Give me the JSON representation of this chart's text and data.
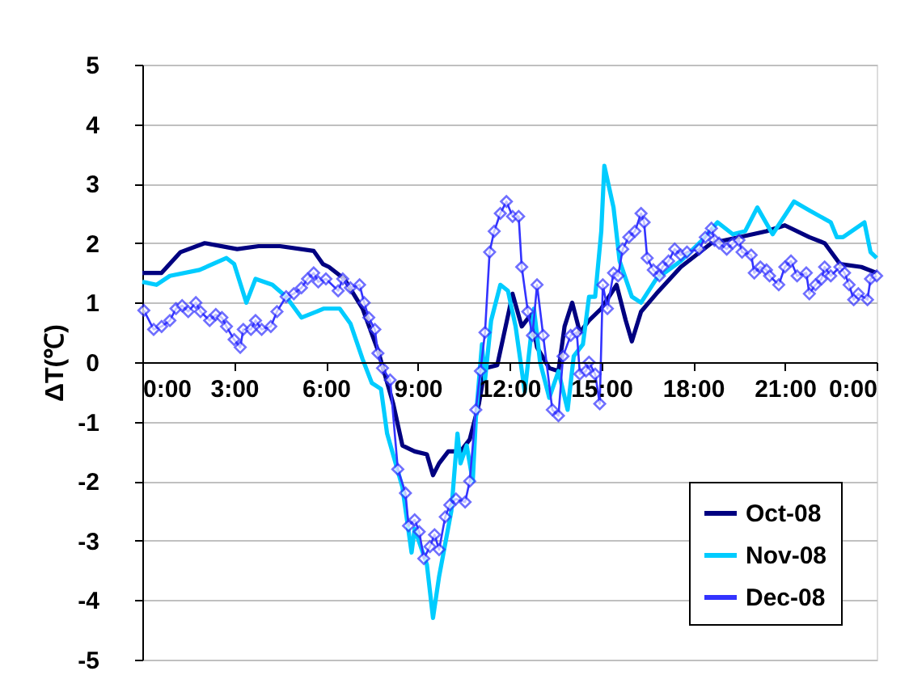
{
  "chart_data": {
    "type": "line",
    "ylabel": "ΔT(℃)",
    "xlim": [
      0,
      24
    ],
    "xticks": [
      {
        "value": 0,
        "label": "0:00"
      },
      {
        "value": 3,
        "label": "3:00"
      },
      {
        "value": 6,
        "label": "6:00"
      },
      {
        "value": 9,
        "label": "9:00"
      },
      {
        "value": 12,
        "label": "12:00"
      },
      {
        "value": 15,
        "label": "15:00"
      },
      {
        "value": 18,
        "label": "18:00"
      },
      {
        "value": 21,
        "label": "21:00"
      },
      {
        "value": 24,
        "label": "0:00"
      }
    ],
    "ylim": [
      -5,
      5
    ],
    "yticks": [
      -5,
      -4,
      -3,
      -2,
      -1,
      0,
      1,
      2,
      3,
      4,
      5
    ],
    "grid": "y",
    "legend": "bottom right",
    "series": [
      {
        "name": "Oct-08",
        "color": "#000080",
        "marker": "none",
        "x": [
          0,
          0.63,
          1.25,
          2.04,
          3.1,
          3.8,
          4.5,
          5.6,
          5.9,
          6.1,
          6.6,
          7.2,
          7.7,
          8.2,
          8.5,
          8.9,
          9.3,
          9.5,
          9.7,
          10.0,
          10.4,
          10.7,
          11.0,
          11.2,
          11.6,
          12.0,
          12.1,
          12.4,
          12.7,
          12.9,
          13.3,
          13.6,
          13.8,
          14.05,
          14.3,
          14.6,
          15.0,
          15.5,
          15.8,
          16.0,
          16.3,
          16.8,
          17.6,
          18.6,
          19.5,
          20.4,
          21.0,
          21.8,
          22.3,
          22.8,
          23.5,
          24.0
        ],
        "values": [
          1.5,
          1.5,
          1.85,
          2.0,
          1.9,
          1.95,
          1.95,
          1.87,
          1.65,
          1.6,
          1.4,
          0.9,
          0.2,
          -0.7,
          -1.4,
          -1.5,
          -1.55,
          -1.9,
          -1.7,
          -1.5,
          -1.5,
          -1.3,
          -0.7,
          -0.1,
          -0.05,
          0.9,
          1.15,
          0.6,
          0.8,
          0.25,
          -0.1,
          -0.15,
          0.6,
          1.0,
          0.5,
          0.7,
          0.9,
          1.3,
          0.7,
          0.35,
          0.85,
          1.15,
          1.6,
          2.0,
          2.1,
          2.2,
          2.3,
          2.1,
          2.0,
          1.65,
          1.6,
          1.5
        ]
      },
      {
        "name": "Nov-08",
        "color": "#00ccff",
        "marker": "none",
        "x": [
          0,
          0.46,
          0.9,
          1.87,
          2.75,
          3.0,
          3.4,
          3.7,
          4.25,
          4.7,
          5.2,
          5.7,
          5.92,
          6.45,
          6.8,
          7.2,
          7.5,
          7.8,
          8.0,
          8.5,
          8.8,
          8.9,
          9.3,
          9.5,
          9.7,
          10.1,
          10.3,
          10.4,
          10.6,
          10.8,
          10.9,
          11.1,
          11.2,
          11.4,
          11.7,
          11.95,
          12.2,
          12.5,
          12.8,
          13.0,
          13.3,
          13.6,
          13.9,
          14.1,
          14.4,
          14.6,
          14.8,
          15.0,
          15.1,
          15.4,
          15.6,
          16.0,
          16.3,
          16.8,
          17.6,
          18.3,
          18.8,
          19.3,
          19.7,
          20.1,
          20.6,
          21.3,
          21.8,
          22.5,
          22.7,
          22.9,
          23.6,
          23.8,
          24.0
        ],
        "values": [
          1.35,
          1.3,
          1.45,
          1.55,
          1.75,
          1.65,
          1.0,
          1.4,
          1.3,
          1.1,
          0.75,
          0.85,
          0.9,
          0.9,
          0.65,
          0.05,
          -0.35,
          -0.45,
          -1.2,
          -2.1,
          -3.2,
          -2.8,
          -3.4,
          -4.3,
          -3.6,
          -2.5,
          -1.2,
          -1.7,
          -1.4,
          -2.0,
          -0.95,
          0.3,
          -0.3,
          0.7,
          1.3,
          1.2,
          0.6,
          -0.5,
          0.9,
          0.0,
          -0.6,
          -0.15,
          -0.8,
          0.1,
          0.3,
          1.1,
          1.1,
          2.2,
          3.3,
          2.6,
          1.7,
          1.1,
          1.0,
          1.4,
          1.7,
          2.05,
          2.35,
          2.15,
          2.2,
          2.6,
          2.15,
          2.7,
          2.55,
          2.35,
          2.1,
          2.1,
          2.35,
          1.85,
          1.75
        ]
      },
      {
        "name": "Dec-08",
        "color": "#3333ff",
        "marker": "diamond",
        "x": [
          0.05,
          0.37,
          0.63,
          0.9,
          1.1,
          1.3,
          1.5,
          1.75,
          1.9,
          2.2,
          2.4,
          2.6,
          2.75,
          3.0,
          3.2,
          3.3,
          3.55,
          3.7,
          3.9,
          4.2,
          4.4,
          4.7,
          4.95,
          5.2,
          5.4,
          5.6,
          5.75,
          6.0,
          6.4,
          6.55,
          6.8,
          7.1,
          7.25,
          7.4,
          7.6,
          7.7,
          7.85,
          8.1,
          8.35,
          8.6,
          8.7,
          8.9,
          9.05,
          9.2,
          9.4,
          9.55,
          9.7,
          9.9,
          10.05,
          10.25,
          10.55,
          10.7,
          10.9,
          11.05,
          11.2,
          11.35,
          11.5,
          11.7,
          11.9,
          12.1,
          12.3,
          12.4,
          12.6,
          12.75,
          12.9,
          13.1,
          13.4,
          13.6,
          13.75,
          14.0,
          14.2,
          14.3,
          14.5,
          14.6,
          14.8,
          14.95,
          15.05,
          15.2,
          15.4,
          15.55,
          15.7,
          15.9,
          16.1,
          16.3,
          16.4,
          16.5,
          16.7,
          16.9,
          17.0,
          17.2,
          17.4,
          17.6,
          17.8,
          18.2,
          18.4,
          18.6,
          18.7,
          18.85,
          19.1,
          19.3,
          19.5,
          19.6,
          19.9,
          20.0,
          20.2,
          20.4,
          20.5,
          20.8,
          21.0,
          21.2,
          21.4,
          21.7,
          21.8,
          22.0,
          22.2,
          22.3,
          22.5,
          22.8,
          22.95,
          23.1,
          23.25,
          23.4,
          23.7,
          23.8,
          24.0
        ],
        "values": [
          0.87,
          0.55,
          0.6,
          0.7,
          0.9,
          0.95,
          0.85,
          1.0,
          0.85,
          0.7,
          0.8,
          0.75,
          0.6,
          0.38,
          0.25,
          0.55,
          0.55,
          0.7,
          0.55,
          0.6,
          0.85,
          1.1,
          1.15,
          1.25,
          1.4,
          1.5,
          1.35,
          1.4,
          1.2,
          1.4,
          1.25,
          1.3,
          1.0,
          0.75,
          0.55,
          0.15,
          -0.1,
          -0.3,
          -1.8,
          -2.2,
          -2.75,
          -2.65,
          -2.85,
          -3.3,
          -3.1,
          -2.9,
          -3.15,
          -2.6,
          -2.4,
          -2.3,
          -2.35,
          -2.0,
          -0.8,
          -0.15,
          0.5,
          1.85,
          2.2,
          2.5,
          2.7,
          2.45,
          2.45,
          1.6,
          0.85,
          0.45,
          1.3,
          0.45,
          -0.8,
          -0.9,
          0.1,
          0.45,
          0.5,
          -0.2,
          -0.15,
          0.0,
          -0.2,
          -0.7,
          1.3,
          0.9,
          1.5,
          1.45,
          1.9,
          2.1,
          2.2,
          2.5,
          2.35,
          1.75,
          1.55,
          1.45,
          1.6,
          1.7,
          1.9,
          1.8,
          1.85,
          1.9,
          2.1,
          2.25,
          2.05,
          2.0,
          1.9,
          2.0,
          2.05,
          1.85,
          1.8,
          1.5,
          1.6,
          1.55,
          1.45,
          1.3,
          1.6,
          1.7,
          1.45,
          1.5,
          1.15,
          1.3,
          1.4,
          1.6,
          1.45,
          1.6,
          1.5,
          1.3,
          1.05,
          1.15,
          1.05,
          1.4,
          1.45
        ]
      }
    ]
  }
}
